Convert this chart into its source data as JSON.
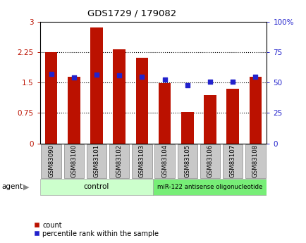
{
  "title": "GDS1729 / 179082",
  "categories": [
    "GSM83090",
    "GSM83100",
    "GSM83101",
    "GSM83102",
    "GSM83103",
    "GSM83104",
    "GSM83105",
    "GSM83106",
    "GSM83107",
    "GSM83108"
  ],
  "red_bars": [
    2.25,
    1.65,
    2.87,
    2.33,
    2.12,
    1.48,
    0.78,
    1.2,
    1.35,
    1.65
  ],
  "blue_dots_left": [
    1.72,
    1.63,
    1.7,
    1.68,
    1.65,
    1.57,
    1.44,
    1.52,
    1.53,
    1.65
  ],
  "left_ylim": [
    0,
    3
  ],
  "right_ylim": [
    0,
    100
  ],
  "left_yticks": [
    0,
    0.75,
    1.5,
    2.25,
    3
  ],
  "left_yticklabels": [
    "0",
    "0.75",
    "1.5",
    "2.25",
    "3"
  ],
  "right_yticks": [
    0,
    25,
    50,
    75,
    100
  ],
  "right_yticklabels": [
    "0",
    "25",
    "50",
    "75",
    "100%"
  ],
  "bar_color": "#bb1100",
  "dot_color": "#2222cc",
  "tick_bg": "#c8c8c8",
  "control_label": "control",
  "treatment_label": "miR-122 antisense oligonucleotide",
  "control_color": "#ccffcc",
  "treatment_color": "#77ee77",
  "agent_label": "agent",
  "legend_count": "count",
  "legend_pct": "percentile rank within the sample",
  "control_samples": 5,
  "treatment_samples": 5
}
